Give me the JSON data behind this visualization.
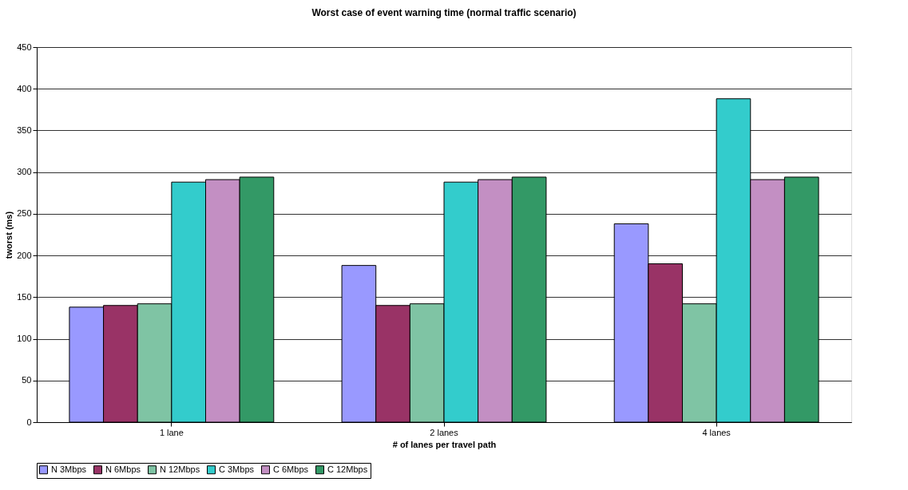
{
  "chart_data": {
    "type": "bar",
    "title": "Worst case of event warning time (normal traffic scenario)",
    "xlabel": "# of lanes per travel path",
    "ylabel": "tworst (ms)",
    "categories": [
      "1 lane",
      "2 lanes",
      "4 lanes"
    ],
    "series": [
      {
        "name": "N 3Mbps",
        "color": "#9999ff",
        "values": [
          138,
          188,
          238
        ]
      },
      {
        "name": "N 6Mbps",
        "color": "#993366",
        "values": [
          140,
          140,
          190
        ]
      },
      {
        "name": "N 12Mbps",
        "color": "#7fc4a4",
        "values": [
          142,
          142,
          142
        ]
      },
      {
        "name": "C 3Mbps",
        "color": "#33cccc",
        "values": [
          288,
          288,
          388
        ]
      },
      {
        "name": "C 6Mbps",
        "color": "#c38fc3",
        "values": [
          291,
          291,
          291
        ]
      },
      {
        "name": "C 12Mbps",
        "color": "#339966",
        "values": [
          294,
          294,
          294
        ]
      }
    ],
    "ylim": [
      0,
      450
    ],
    "yticks": [
      0,
      50,
      100,
      150,
      200,
      250,
      300,
      350,
      400,
      450
    ],
    "grid": "y",
    "legend": "bottom"
  }
}
